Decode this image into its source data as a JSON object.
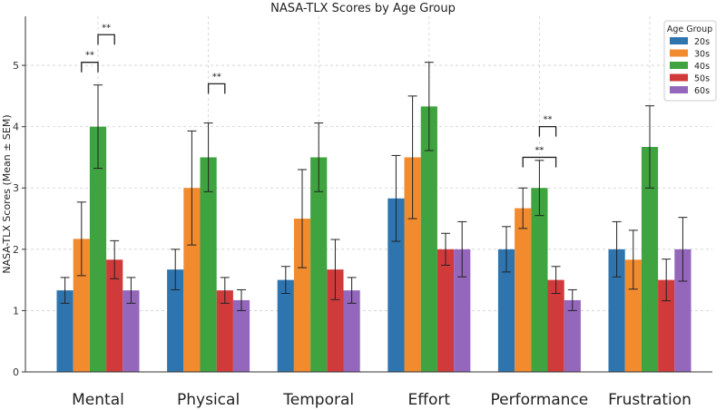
{
  "chart_data": {
    "type": "bar",
    "title": "NASA-TLX Scores by Age Group",
    "xlabel": "",
    "ylabel": "NASA-TLX Scores (Mean ± SEM)",
    "ylim": [
      0,
      5.8
    ],
    "yticks": [
      0,
      1,
      2,
      3,
      4,
      5
    ],
    "grid": true,
    "legend_title": "Age Group",
    "legend_position": "top-right",
    "categories": [
      "Mental",
      "Physical",
      "Temporal",
      "Effort",
      "Performance",
      "Frustration"
    ],
    "series": [
      {
        "name": "20s",
        "color": "#2e75b0",
        "values": [
          1.33,
          1.67,
          1.5,
          2.83,
          2.0,
          2.0
        ],
        "errors": [
          0.21,
          0.33,
          0.22,
          0.7,
          0.37,
          0.45
        ]
      },
      {
        "name": "30s",
        "color": "#f28a2e",
        "values": [
          2.17,
          3.0,
          2.5,
          3.5,
          2.67,
          1.83
        ],
        "errors": [
          0.6,
          0.93,
          0.8,
          1.0,
          0.33,
          0.48
        ]
      },
      {
        "name": "40s",
        "color": "#3fa33f",
        "values": [
          4.0,
          3.5,
          3.5,
          4.33,
          3.0,
          3.67
        ],
        "errors": [
          0.68,
          0.56,
          0.56,
          0.72,
          0.45,
          0.67
        ]
      },
      {
        "name": "50s",
        "color": "#d13a3a",
        "values": [
          1.83,
          1.33,
          1.67,
          2.0,
          1.5,
          1.5
        ],
        "errors": [
          0.31,
          0.21,
          0.49,
          0.26,
          0.22,
          0.34
        ]
      },
      {
        "name": "60s",
        "color": "#9467bd",
        "values": [
          1.33,
          1.17,
          1.33,
          2.0,
          1.17,
          2.0
        ],
        "errors": [
          0.21,
          0.17,
          0.21,
          0.45,
          0.17,
          0.52
        ]
      }
    ],
    "significance": [
      {
        "category": "Mental",
        "from": "30s",
        "to": "40s",
        "label": "**",
        "y": 5.05
      },
      {
        "category": "Mental",
        "from": "40s",
        "to": "50s",
        "label": "**",
        "y": 5.5
      },
      {
        "category": "Physical",
        "from": "40s",
        "to": "50s",
        "label": "**",
        "y": 4.7
      },
      {
        "category": "Performance",
        "from": "30s",
        "to": "50s",
        "label": "**",
        "y": 3.5
      },
      {
        "category": "Performance",
        "from": "40s",
        "to": "50s",
        "label": "**",
        "y": 4.0
      }
    ]
  }
}
